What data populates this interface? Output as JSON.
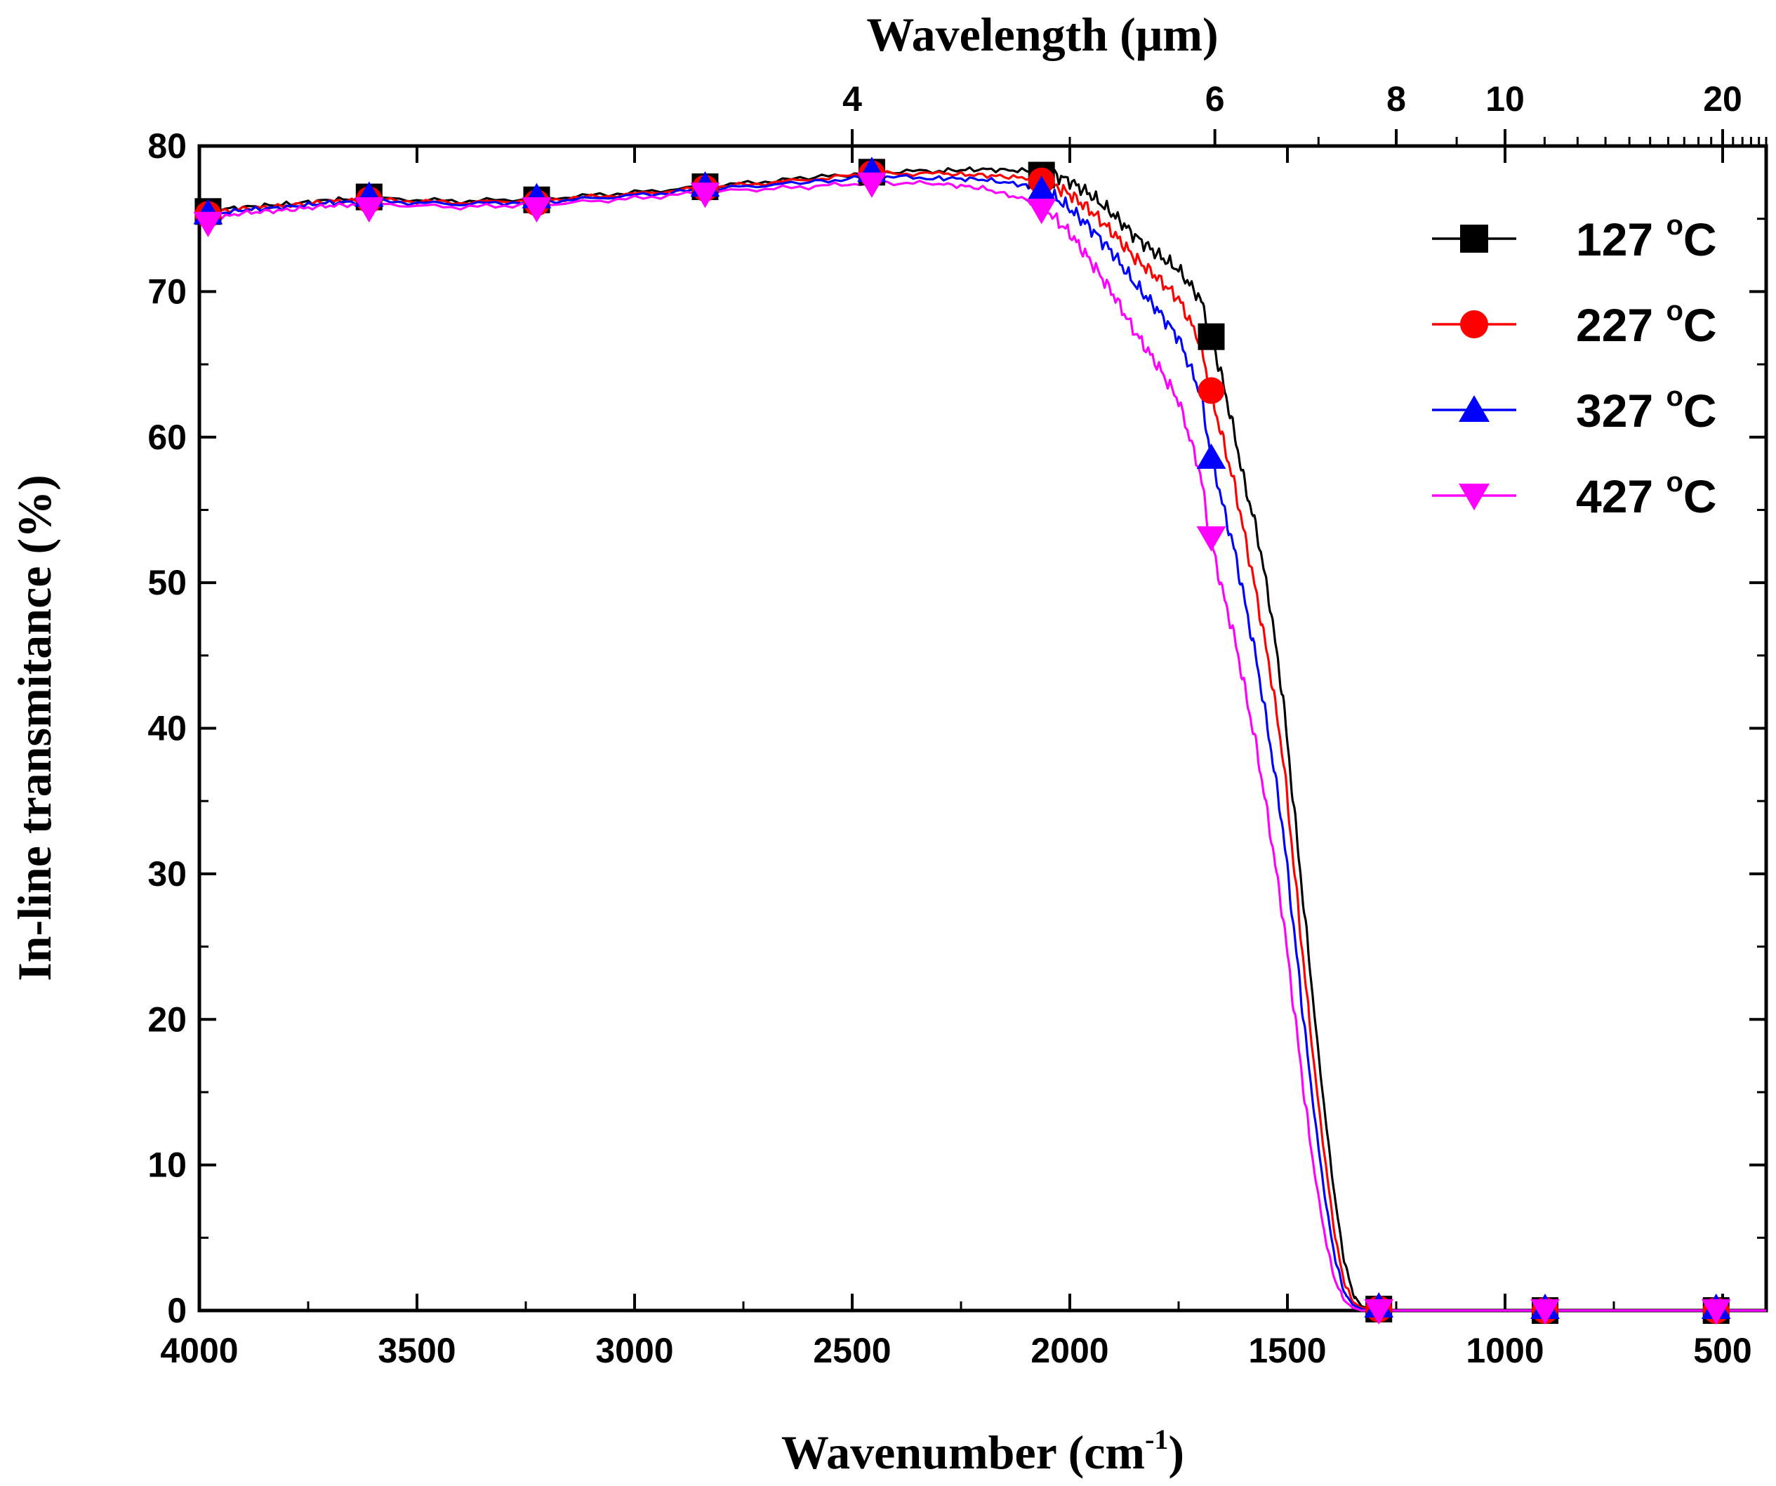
{
  "chart_data": {
    "type": "line",
    "title": "",
    "xlabel": "Wavenumber",
    "xlabel_unit_base": "cm",
    "xlabel_unit_exp": "-1",
    "ylabel": "In-line transmitance (%)",
    "top_axis_label": "Wavelength (μm)",
    "x_range": [
      4000,
      400
    ],
    "ylim": [
      0,
      80
    ],
    "x_ticks": [
      4000,
      3500,
      3000,
      2500,
      2000,
      1500,
      1000,
      500
    ],
    "x_tick_labels": [
      "4000",
      "3500",
      "3000",
      "2500",
      "2000",
      "1500",
      "1000",
      "500"
    ],
    "y_ticks": [
      0,
      10,
      20,
      30,
      40,
      50,
      60,
      70,
      80
    ],
    "y_tick_labels": [
      "0",
      "10",
      "20",
      "30",
      "40",
      "50",
      "60",
      "70",
      "80"
    ],
    "top_ticks_um": [
      4,
      6,
      8,
      10,
      20
    ],
    "top_tick_labels": [
      "4",
      "6",
      "8",
      "10",
      "20"
    ],
    "legend_position": "top-right",
    "grid": false,
    "series": [
      {
        "name": "127 °C",
        "temp": "127",
        "unit_sup": "o",
        "unit": "C",
        "color": "#000000",
        "marker": "square",
        "x": [
          4000,
          3900,
          3800,
          3700,
          3600,
          3400,
          3200,
          3000,
          2800,
          2600,
          2450,
          2300,
          2200,
          2100,
          2050,
          2000,
          1950,
          1900,
          1850,
          1800,
          1750,
          1700,
          1680,
          1650,
          1620,
          1600,
          1570,
          1540,
          1510,
          1490,
          1470,
          1450,
          1430,
          1410,
          1390,
          1370,
          1350,
          1330,
          1310,
          1300,
          1200,
          1000,
          800,
          600,
          400
        ],
        "y": [
          75.5,
          75.8,
          76.0,
          76.3,
          76.4,
          76.2,
          76.4,
          76.8,
          77.3,
          77.8,
          78.2,
          78.3,
          78.4,
          78.3,
          78.2,
          77.6,
          76.6,
          75.3,
          73.8,
          72.6,
          71.5,
          69.5,
          67.5,
          64.0,
          60.0,
          57.0,
          53.5,
          48.5,
          42.0,
          36.0,
          30.0,
          24.0,
          18.0,
          12.5,
          7.5,
          3.5,
          1.2,
          0.3,
          0.1,
          0.0,
          0.0,
          0.0,
          0.0,
          0.0,
          0.0
        ],
        "markers_x": [
          3980,
          3610,
          3225,
          2838,
          2455,
          2065,
          1675,
          1290,
          908,
          515
        ],
        "markers_y": [
          75.5,
          76.5,
          76.3,
          77.2,
          78.2,
          78.0,
          66.9,
          0.1,
          0.0,
          0.0
        ]
      },
      {
        "name": "227 °C",
        "temp": "227",
        "unit_sup": "o",
        "unit": "C",
        "color": "#ff0000",
        "marker": "circle",
        "x": [
          4000,
          3900,
          3800,
          3700,
          3600,
          3400,
          3200,
          3000,
          2800,
          2600,
          2450,
          2300,
          2200,
          2100,
          2050,
          2000,
          1950,
          1900,
          1850,
          1800,
          1750,
          1700,
          1680,
          1650,
          1620,
          1600,
          1570,
          1540,
          1510,
          1490,
          1470,
          1450,
          1430,
          1410,
          1390,
          1370,
          1350,
          1330,
          1310,
          1300,
          1200,
          1000,
          800,
          600,
          400
        ],
        "y": [
          75.3,
          75.7,
          75.9,
          76.2,
          76.3,
          76.1,
          76.3,
          76.7,
          77.2,
          77.7,
          78.1,
          78.1,
          78.0,
          77.8,
          77.5,
          76.7,
          75.5,
          74.0,
          72.3,
          71.0,
          69.5,
          66.5,
          63.5,
          60.0,
          56.5,
          53.5,
          49.0,
          44.0,
          38.0,
          32.0,
          26.0,
          20.0,
          14.5,
          9.5,
          5.0,
          2.0,
          0.6,
          0.2,
          0.1,
          0.0,
          0.0,
          0.0,
          0.0,
          0.0,
          0.0
        ],
        "markers_x": [
          3980,
          3610,
          3225,
          2838,
          2455,
          2065,
          1675,
          1290,
          908,
          515
        ],
        "markers_y": [
          75.3,
          76.3,
          76.1,
          77.1,
          78.1,
          77.6,
          63.2,
          0.1,
          0.0,
          0.0
        ]
      },
      {
        "name": "327 °C",
        "temp": "327",
        "unit_sup": "o",
        "unit": "C",
        "color": "#0000ff",
        "marker": "triangle-up",
        "x": [
          4000,
          3900,
          3800,
          3700,
          3600,
          3400,
          3200,
          3000,
          2800,
          2600,
          2450,
          2300,
          2200,
          2100,
          2050,
          2000,
          1950,
          1900,
          1850,
          1800,
          1750,
          1700,
          1680,
          1650,
          1620,
          1600,
          1570,
          1540,
          1510,
          1490,
          1470,
          1450,
          1430,
          1410,
          1390,
          1370,
          1350,
          1330,
          1310,
          1300,
          1200,
          1000,
          800,
          600,
          400
        ],
        "y": [
          75.2,
          75.6,
          75.8,
          76.1,
          76.2,
          76.0,
          76.2,
          76.6,
          77.1,
          77.5,
          77.9,
          77.8,
          77.7,
          77.3,
          76.8,
          75.7,
          74.3,
          72.6,
          70.5,
          68.8,
          66.8,
          63.0,
          59.5,
          55.5,
          52.0,
          49.0,
          44.5,
          39.0,
          33.0,
          27.5,
          22.0,
          16.5,
          11.5,
          7.0,
          3.5,
          1.3,
          0.4,
          0.1,
          0.0,
          0.0,
          0.0,
          0.0,
          0.0,
          0.0,
          0.0
        ],
        "markers_x": [
          3980,
          3610,
          3225,
          2838,
          2455,
          2065,
          1675,
          1290,
          908,
          515
        ],
        "markers_y": [
          75.4,
          76.6,
          76.5,
          77.3,
          78.3,
          77.0,
          58.6,
          0.3,
          0.2,
          0.2
        ]
      },
      {
        "name": "427 °C",
        "temp": "427",
        "unit_sup": "o",
        "unit": "C",
        "color": "#ff00ff",
        "marker": "triangle-down",
        "x": [
          4000,
          3900,
          3800,
          3700,
          3600,
          3400,
          3200,
          3000,
          2800,
          2600,
          2450,
          2300,
          2200,
          2100,
          2050,
          2000,
          1950,
          1900,
          1850,
          1800,
          1750,
          1700,
          1680,
          1650,
          1620,
          1600,
          1570,
          1540,
          1510,
          1490,
          1470,
          1450,
          1430,
          1410,
          1390,
          1370,
          1350,
          1330,
          1310,
          1300,
          1200,
          1000,
          800,
          600,
          400
        ],
        "y": [
          74.8,
          75.4,
          75.6,
          75.9,
          76.0,
          75.8,
          76.0,
          76.4,
          76.9,
          77.2,
          77.5,
          77.4,
          77.1,
          76.3,
          75.5,
          74.0,
          72.0,
          69.8,
          67.2,
          65.0,
          62.5,
          57.5,
          53.5,
          49.5,
          46.0,
          43.0,
          38.5,
          33.0,
          27.0,
          22.0,
          17.0,
          12.0,
          8.0,
          4.5,
          2.0,
          0.7,
          0.2,
          0.0,
          0.0,
          0.0,
          0.0,
          0.0,
          0.0,
          0.0,
          0.0
        ],
        "markers_x": [
          3980,
          3610,
          3225,
          2838,
          2455,
          2065,
          1675,
          1290,
          908,
          515
        ],
        "markers_y": [
          74.7,
          75.7,
          75.7,
          76.7,
          77.4,
          75.6,
          53.1,
          0.0,
          0.0,
          0.0
        ]
      }
    ]
  }
}
